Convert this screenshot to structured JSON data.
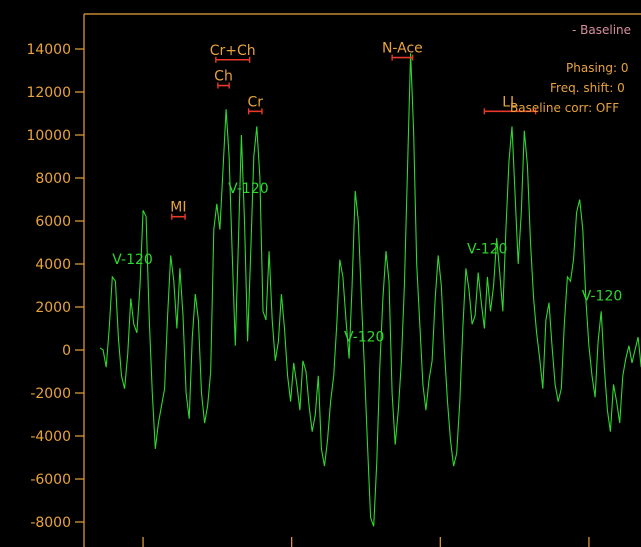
{
  "colors": {
    "background": "#000000",
    "axis": "#e8a33c",
    "spectrum": "#2ed82e",
    "marker": "#e8392a",
    "info_title": "#d98fa0",
    "info_text": "#e8a33c"
  },
  "info": {
    "title": "- Baseline",
    "lines": [
      "Phasing: 0",
      "Freq. shift: 0",
      "Baseline corr: OFF"
    ]
  },
  "chart_data": {
    "type": "line",
    "title": "",
    "xlabel": "",
    "ylabel": "",
    "ylim": [
      -9000,
      14500
    ],
    "yticks": [
      14000,
      12000,
      10000,
      8000,
      6000,
      4000,
      2000,
      0,
      -2000,
      -4000,
      -6000,
      -8000
    ],
    "ytick_labels": [
      "14000",
      "12000",
      "10000",
      "8000",
      "6000",
      "4000",
      "2000",
      "0",
      "-2000",
      "-4000",
      "-6000",
      "-8000"
    ],
    "xlim": [
      0,
      530
    ],
    "x_ticks": [
      42,
      187,
      332,
      477
    ],
    "grid": false,
    "legend": "none",
    "series": [
      {
        "name": "",
        "x": [
          0,
          3,
          6,
          9,
          12,
          15,
          18,
          21,
          24,
          27,
          30,
          33,
          36,
          39,
          42,
          45,
          48,
          51,
          54,
          57,
          60,
          63,
          66,
          69,
          72,
          75,
          78,
          81,
          84,
          87,
          90,
          93,
          96,
          99,
          102,
          105,
          108,
          111,
          114,
          117,
          120,
          123,
          126,
          129,
          132,
          135,
          138,
          141,
          144,
          147,
          150,
          153,
          156,
          159,
          162,
          165,
          168,
          171,
          174,
          177,
          180,
          183,
          186,
          189,
          192,
          195,
          198,
          201,
          204,
          207,
          210,
          213,
          216,
          219,
          222,
          225,
          228,
          231,
          234,
          237,
          240,
          243,
          246,
          249,
          252,
          255,
          258,
          261,
          264,
          267,
          270,
          273,
          276,
          279,
          282,
          285,
          288,
          291,
          294,
          297,
          300,
          303,
          306,
          309,
          312,
          315,
          318,
          321,
          324,
          327,
          330,
          333,
          336,
          339,
          342,
          345,
          348,
          351,
          354,
          357,
          360,
          363,
          366,
          369,
          372,
          375,
          378,
          381,
          384,
          387,
          390,
          393,
          396,
          399,
          402,
          405,
          408,
          411,
          414,
          417,
          420,
          423,
          426,
          429,
          432,
          435,
          438,
          441,
          444,
          447,
          450,
          453,
          456,
          459,
          462,
          465,
          468,
          471,
          474,
          477,
          480,
          483,
          486,
          489,
          492,
          495,
          498,
          501,
          504,
          507,
          510,
          513,
          516,
          519,
          522,
          525,
          528
        ],
        "values": [
          100,
          0,
          -800,
          1000,
          3400,
          3200,
          500,
          -1200,
          -1800,
          -200,
          2400,
          1200,
          800,
          3000,
          6500,
          6200,
          1500,
          -2000,
          -4600,
          -3400,
          -2600,
          -1800,
          1600,
          4400,
          3200,
          1000,
          3800,
          1600,
          -2000,
          -3200,
          600,
          2600,
          1400,
          -2000,
          -3400,
          -2600,
          -1000,
          5600,
          6800,
          5600,
          8400,
          11200,
          9000,
          4500,
          200,
          5000,
          10000,
          6000,
          400,
          4500,
          9000,
          10400,
          8000,
          1800,
          1400,
          4600,
          1400,
          -500,
          400,
          2600,
          1000,
          -1200,
          -2400,
          -600,
          -1600,
          -2800,
          -500,
          -1000,
          -2600,
          -3800,
          -3000,
          -1200,
          -4600,
          -5400,
          -4200,
          -2400,
          -1200,
          1200,
          4200,
          3400,
          1400,
          -400,
          3000,
          7400,
          6000,
          2400,
          -800,
          -4400,
          -7800,
          -8200,
          -5200,
          -800,
          2400,
          4600,
          3200,
          -2000,
          -4400,
          -2800,
          -600,
          3000,
          8400,
          13800,
          10200,
          4000,
          1200,
          -1600,
          -2800,
          -1400,
          -500,
          2400,
          4400,
          3000,
          0,
          -2400,
          -4200,
          -5400,
          -4800,
          -2400,
          1000,
          3800,
          2800,
          1200,
          1600,
          3600,
          2200,
          1000,
          3400,
          1800,
          3000,
          5200,
          3600,
          1800,
          5600,
          8800,
          10400,
          7200,
          4000,
          6400,
          10200,
          8600,
          5000,
          2400,
          800,
          -400,
          -1800,
          1400,
          2200,
          200,
          -1600,
          -2400,
          -1800,
          1200,
          3400,
          3200,
          4200,
          6400,
          7000,
          5600,
          2400,
          200,
          -1200,
          -2200,
          400,
          1800,
          -800,
          -2800,
          -3800,
          -1600,
          -2400,
          -3400,
          -1200,
          -400,
          200,
          -600,
          0,
          600,
          -800
        ]
      }
    ],
    "peak_markers": [
      {
        "label": "Cr+Ch",
        "x1": 113,
        "x2": 146,
        "y": 13500
      },
      {
        "label": "Ch",
        "x1": 115,
        "x2": 126,
        "y": 12300
      },
      {
        "label": "Cr",
        "x1": 145,
        "x2": 158,
        "y": 11100
      },
      {
        "label": "N-Ace",
        "x1": 285,
        "x2": 305,
        "y": 13600
      },
      {
        "label": "MI",
        "x1": 70,
        "x2": 83,
        "y": 6200
      },
      {
        "label": "LL",
        "x1": 375,
        "x2": 425,
        "y": 11100
      }
    ],
    "series_labels": [
      {
        "text": "V-120",
        "x": 12,
        "y": 4000
      },
      {
        "text": "V-120",
        "x": 125,
        "y": 7300
      },
      {
        "text": "V-120",
        "x": 238,
        "y": 400
      },
      {
        "text": "V-120",
        "x": 358,
        "y": 4500
      },
      {
        "text": "V-120",
        "x": 470,
        "y": 2300
      }
    ]
  }
}
